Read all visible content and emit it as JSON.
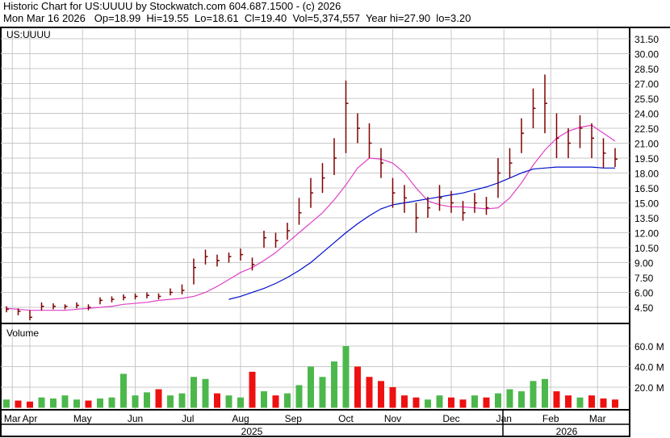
{
  "header": {
    "title": "Historic Chart for US:UUUU by Stockwatch.com 604.687.1500 - (c) 2026",
    "stats": "Mon Mar 16 2026   Op=18.99  Hi=19.55  Lo=18.61  Cl=19.40  Vol=5,374,557  Year hi=27.90  lo=3.20"
  },
  "chart_data": [
    {
      "type": "ohlc",
      "title": "US:UUUU",
      "ylim": [
        3,
        32.5
      ],
      "yticks": [
        "31.50",
        "30.00",
        "28.50",
        "27.00",
        "25.50",
        "24.00",
        "22.50",
        "21.00",
        "19.50",
        "18.00",
        "16.50",
        "15.00",
        "13.50",
        "12.00",
        "10.50",
        "9.00",
        "7.50",
        "6.00",
        "4.50"
      ],
      "close": [
        4.3,
        4.1,
        3.5,
        4.6,
        4.6,
        4.6,
        4.7,
        4.5,
        5.2,
        5.3,
        5.5,
        5.6,
        5.7,
        5.6,
        6.0,
        6.2,
        8.5,
        9.6,
        9.2,
        9.6,
        9.8,
        8.8,
        11.5,
        11.2,
        12.2,
        14.0,
        16.0,
        17.5,
        19.5,
        25.0,
        22.5,
        21.0,
        19.0,
        16.0,
        15.5,
        13.5,
        14.5,
        15.5,
        15.0,
        14.0,
        15.0,
        14.5,
        18.0,
        19.0,
        22.0,
        24.5,
        25.0,
        21.5,
        21.0,
        22.5,
        21.5,
        20.0,
        19.4
      ],
      "high": [
        4.6,
        4.4,
        4.2,
        5.0,
        4.9,
        4.8,
        5.0,
        4.8,
        5.5,
        5.6,
        5.8,
        5.9,
        6.0,
        5.9,
        6.4,
        6.8,
        9.4,
        10.3,
        9.8,
        10.0,
        10.4,
        9.5,
        12.2,
        12.0,
        13.0,
        15.5,
        17.5,
        19.0,
        21.5,
        27.3,
        24.0,
        23.0,
        20.5,
        17.5,
        16.8,
        15.0,
        15.6,
        16.8,
        16.2,
        15.2,
        16.0,
        15.6,
        19.5,
        20.5,
        23.5,
        26.5,
        27.9,
        24.0,
        22.5,
        23.8,
        23.0,
        21.5,
        20.5
      ],
      "low": [
        4.0,
        3.7,
        3.2,
        4.2,
        4.3,
        4.3,
        4.4,
        4.2,
        4.8,
        5.0,
        5.2,
        5.3,
        5.4,
        5.3,
        5.7,
        5.8,
        6.8,
        8.8,
        8.6,
        9.0,
        9.2,
        8.2,
        10.5,
        10.5,
        11.3,
        12.8,
        14.5,
        16.0,
        17.8,
        20.0,
        21.0,
        19.5,
        17.5,
        14.5,
        14.0,
        12.0,
        13.5,
        14.2,
        14.0,
        13.2,
        14.0,
        13.8,
        15.5,
        17.5,
        20.0,
        22.5,
        22.0,
        19.5,
        19.5,
        20.5,
        19.5,
        18.5,
        18.6
      ],
      "ma_pink": [
        4.4,
        4.3,
        4.2,
        4.2,
        4.2,
        4.2,
        4.3,
        4.4,
        4.5,
        4.6,
        4.8,
        4.9,
        5.0,
        5.2,
        5.3,
        5.4,
        5.6,
        6.0,
        6.6,
        7.3,
        8.0,
        8.5,
        9.2,
        10.0,
        11.0,
        12.0,
        13.0,
        14.0,
        15.3,
        16.8,
        18.5,
        19.5,
        19.4,
        19.0,
        18.0,
        16.5,
        15.2,
        14.8,
        14.6,
        14.6,
        14.5,
        14.4,
        14.5,
        15.5,
        17.0,
        18.8,
        20.3,
        21.5,
        22.2,
        22.6,
        22.8,
        22.0,
        21.2
      ],
      "ma_blue": [
        null,
        null,
        null,
        null,
        null,
        null,
        null,
        null,
        null,
        null,
        null,
        null,
        null,
        null,
        null,
        null,
        null,
        null,
        null,
        5.3,
        5.6,
        6.0,
        6.4,
        6.9,
        7.5,
        8.2,
        9.0,
        10.0,
        11.0,
        12.0,
        12.9,
        13.7,
        14.4,
        14.8,
        15.0,
        15.2,
        15.4,
        15.6,
        15.8,
        16.0,
        16.3,
        16.6,
        17.0,
        17.5,
        18.0,
        18.4,
        18.5,
        18.6,
        18.6,
        18.6,
        18.6,
        18.5,
        18.5
      ]
    },
    {
      "type": "bar",
      "title": "Volume",
      "yticks": [
        "60.0 M",
        "40.0 M",
        "20.0 M"
      ],
      "unit": "M",
      "values": [
        8,
        7,
        6,
        10,
        9,
        12,
        8,
        7,
        9,
        10,
        33,
        12,
        15,
        18,
        12,
        14,
        30,
        28,
        14,
        12,
        10,
        35,
        16,
        12,
        14,
        22,
        40,
        30,
        45,
        60,
        40,
        30,
        26,
        20,
        12,
        10,
        8,
        12,
        10,
        8,
        12,
        10,
        14,
        18,
        16,
        26,
        28,
        16,
        12,
        10,
        12,
        9,
        8
      ]
    }
  ],
  "x_axis": {
    "months": [
      "Mar",
      "Apr",
      "May",
      "Jun",
      "Jul",
      "Aug",
      "Sep",
      "Oct",
      "Nov",
      "Dec",
      "Jan",
      "Feb",
      "Mar"
    ],
    "years": [
      "2025",
      "2026"
    ]
  },
  "colors": {
    "price_bar": "#800000",
    "ma_pink": "#e040c8",
    "ma_blue": "#0010cc",
    "vol_up": "#4cb84c",
    "vol_down": "#ee1111",
    "grid": "#c8c8c8"
  }
}
